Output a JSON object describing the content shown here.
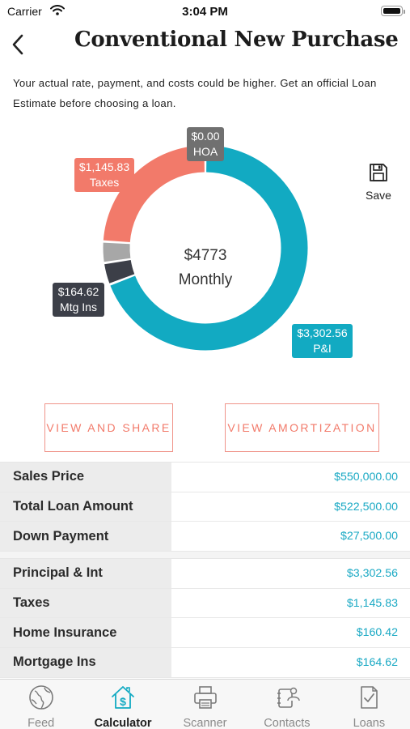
{
  "status_bar": {
    "carrier": "Carrier",
    "time": "3:04 PM"
  },
  "header": {
    "title": "Conventional New Purchase"
  },
  "disclaimer": "Your actual rate, payment, and costs could be higher. Get an official Loan Estimate before choosing a loan.",
  "chart_data": {
    "type": "pie",
    "variant": "donut",
    "center_value": "$4773",
    "center_label": "Monthly",
    "slices": [
      {
        "label": "P&I",
        "display_value": "$3,302.56",
        "value": 3302.56,
        "color": "#12aac2"
      },
      {
        "label": "Mtg Ins",
        "display_value": "$164.62",
        "value": 164.62,
        "color": "#3c3f48"
      },
      {
        "label": "Home Insurance",
        "display_value": "$160.42",
        "value": 160.42,
        "color": "#a7a7a7"
      },
      {
        "label": "Taxes",
        "display_value": "$1,145.83",
        "value": 1145.83,
        "color": "#f27a6a"
      },
      {
        "label": "HOA",
        "display_value": "$0.00",
        "value": 0,
        "color": "#707070"
      }
    ]
  },
  "callouts": {
    "hoa": {
      "value": "$0.00",
      "label": "HOA"
    },
    "taxes": {
      "value": "$1,145.83",
      "label": "Taxes"
    },
    "mtg": {
      "value": "$164.62",
      "label": "Mtg Ins"
    },
    "pi": {
      "value": "$3,302.56",
      "label": "P&I"
    }
  },
  "save_label": "Save",
  "buttons": {
    "view_share": "VIEW AND SHARE",
    "view_amortization": "VIEW AMORTIZATION"
  },
  "summary_rows": [
    {
      "label": "Sales Price",
      "value": "$550,000.00"
    },
    {
      "label": "Total Loan Amount",
      "value": "$522,500.00"
    },
    {
      "label": "Down Payment",
      "value": "$27,500.00"
    }
  ],
  "payment_rows": [
    {
      "label": "Principal & Int",
      "value": "$3,302.56"
    },
    {
      "label": "Taxes",
      "value": "$1,145.83"
    },
    {
      "label": "Home Insurance",
      "value": "$160.42"
    },
    {
      "label": "Mortgage Ins",
      "value": "$164.62"
    }
  ],
  "tabs": [
    {
      "label": "Feed",
      "icon": "globe-icon"
    },
    {
      "label": "Calculator",
      "icon": "house-dollar-icon",
      "active": true
    },
    {
      "label": "Scanner",
      "icon": "printer-icon"
    },
    {
      "label": "Contacts",
      "icon": "contacts-icon"
    },
    {
      "label": "Loans",
      "icon": "document-check-icon"
    }
  ],
  "colors": {
    "accent_teal": "#12aac2",
    "accent_salmon": "#f27a6a",
    "label_bg": "#ececec"
  }
}
